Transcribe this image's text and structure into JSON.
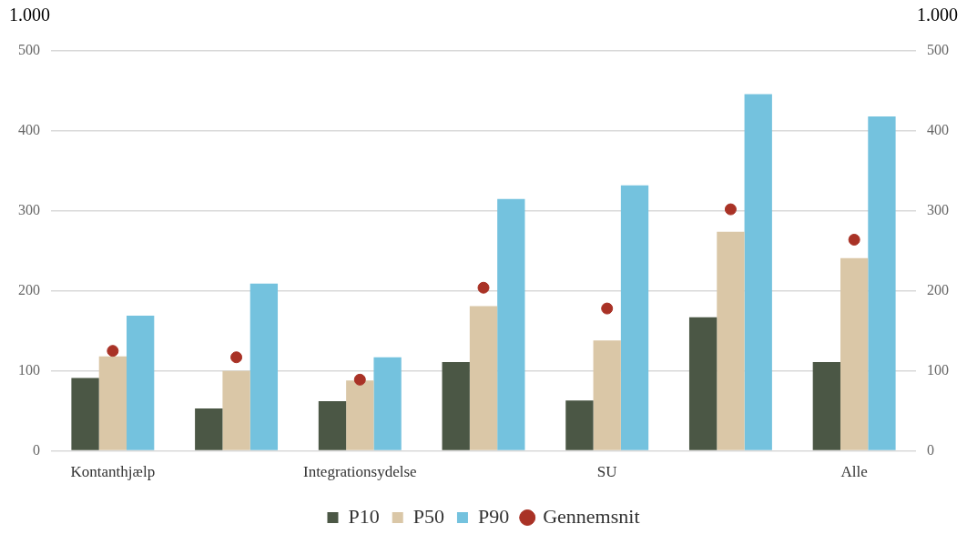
{
  "chart_data": {
    "type": "bar",
    "ylabel": "1.000",
    "y2label": "1.000",
    "categories": [
      "Kontanthjælp",
      null,
      "Integrationsydelse",
      null,
      "SU",
      null,
      "Alle"
    ],
    "series": [
      {
        "name": "P10",
        "color": "#4b5745",
        "values": [
          91,
          53,
          62,
          111,
          63,
          167,
          111
        ]
      },
      {
        "name": "P50",
        "color": "#dac7a7",
        "values": [
          118,
          100,
          88,
          181,
          138,
          274,
          241
        ]
      },
      {
        "name": "P90",
        "color": "#74c2de",
        "values": [
          169,
          209,
          117,
          315,
          332,
          446,
          418
        ]
      },
      {
        "name": "Gennemsnit",
        "type": "scatter",
        "color": "#a93226",
        "values": [
          125,
          117,
          89,
          204,
          178,
          302,
          264
        ]
      }
    ],
    "ylim": [
      0,
      500
    ],
    "yticks": [
      0,
      100,
      200,
      300,
      400,
      500
    ],
    "y2lim": [
      0,
      500
    ],
    "y2ticks": [
      0,
      100,
      200,
      300,
      400,
      500
    ],
    "grid": "y",
    "legend": "bottom",
    "marker": "circle"
  }
}
